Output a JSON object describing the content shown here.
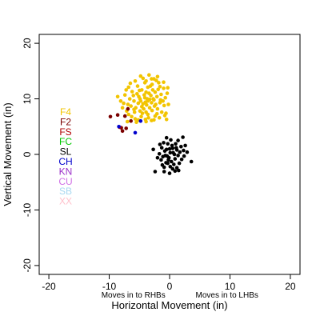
{
  "chart_data": {
    "type": "scatter",
    "title": "",
    "xlabel": "Horizontal Movement (in)",
    "ylabel": "Vertical Movement (in)",
    "xlim": [
      -21.6,
      21.6
    ],
    "ylim": [
      -21.6,
      21.6
    ],
    "x_ticks": [
      -20,
      -10,
      0,
      10,
      20
    ],
    "y_ticks": [
      -20,
      -10,
      0,
      10,
      20
    ],
    "x_tick_labels": [
      "-20",
      "-10",
      "0",
      "10",
      "20"
    ],
    "y_tick_labels": [
      "-20",
      "-10",
      "0",
      "10",
      "20"
    ],
    "grid": false,
    "legend_position": "left",
    "annotations": [
      {
        "text": "Moves in to RHBs",
        "x": -6,
        "y": -25.5
      },
      {
        "text": "Moves in to LHBs",
        "x": 9.5,
        "y": -25.5
      }
    ],
    "series": [
      {
        "name": "F4",
        "color": "#f2c400",
        "points": [
          [
            -4.1,
            10.2
          ],
          [
            -3.6,
            9.6
          ],
          [
            -4.4,
            9.1
          ],
          [
            -3.1,
            10.6
          ],
          [
            -2.6,
            9.8
          ],
          [
            -3.9,
            11.2
          ],
          [
            -4.9,
            10.0
          ],
          [
            -5.2,
            9.2
          ],
          [
            -4.6,
            8.6
          ],
          [
            -3.3,
            8.4
          ],
          [
            -2.3,
            9.0
          ],
          [
            -2.1,
            10.4
          ],
          [
            -2.8,
            11.6
          ],
          [
            -3.6,
            12.1
          ],
          [
            -4.6,
            11.6
          ],
          [
            -5.4,
            10.9
          ],
          [
            -5.9,
            9.6
          ],
          [
            -5.6,
            8.4
          ],
          [
            -4.9,
            7.8
          ],
          [
            -3.9,
            7.6
          ],
          [
            -2.9,
            7.9
          ],
          [
            -2.0,
            8.2
          ],
          [
            -1.6,
            9.3
          ],
          [
            -1.4,
            10.8
          ],
          [
            -1.9,
            11.7
          ],
          [
            -2.9,
            12.6
          ],
          [
            -4.1,
            12.9
          ],
          [
            -5.3,
            12.3
          ],
          [
            -6.2,
            11.3
          ],
          [
            -6.6,
            10.0
          ],
          [
            -6.4,
            8.7
          ],
          [
            -5.8,
            7.6
          ],
          [
            -4.7,
            6.8
          ],
          [
            -3.5,
            6.6
          ],
          [
            -2.4,
            6.9
          ],
          [
            -1.3,
            7.6
          ],
          [
            -0.9,
            8.8
          ],
          [
            -0.7,
            10.2
          ],
          [
            -1.0,
            11.9
          ],
          [
            -1.8,
            12.9
          ],
          [
            -3.0,
            13.6
          ],
          [
            -4.4,
            13.7
          ],
          [
            -5.7,
            13.2
          ],
          [
            -6.8,
            12.1
          ],
          [
            -7.4,
            10.7
          ],
          [
            -7.6,
            9.2
          ],
          [
            -7.1,
            7.8
          ],
          [
            -6.3,
            6.8
          ],
          [
            -5.2,
            6.2
          ],
          [
            -3.9,
            5.9
          ],
          [
            -2.6,
            6.2
          ],
          [
            -1.7,
            6.6
          ],
          [
            -0.6,
            7.4
          ],
          [
            -0.2,
            9.0
          ],
          [
            -0.4,
            11.0
          ],
          [
            -2.2,
            13.3
          ],
          [
            -3.7,
            10.0
          ],
          [
            -4.2,
            10.7
          ],
          [
            -3.0,
            9.3
          ],
          [
            -3.4,
            11.0
          ],
          [
            -4.8,
            9.6
          ],
          [
            -2.7,
            10.0
          ],
          [
            -3.3,
            9.9
          ],
          [
            -4.0,
            9.4
          ],
          [
            -3.8,
            8.9
          ],
          [
            -2.5,
            8.7
          ],
          [
            -5.1,
            10.4
          ],
          [
            -4.3,
            8.2
          ],
          [
            -3.2,
            12.3
          ],
          [
            -2.4,
            11.2
          ],
          [
            -5.0,
            11.5
          ],
          [
            -6.0,
            10.6
          ],
          [
            -1.5,
            9.8
          ],
          [
            -3.6,
            7.2
          ],
          [
            -4.5,
            7.4
          ],
          [
            -2.1,
            7.3
          ],
          [
            -5.9,
            8.1
          ],
          [
            -1.1,
            9.6
          ],
          [
            -3.9,
            13.2
          ],
          [
            -2.6,
            13.6
          ],
          [
            -6.9,
            9.0
          ],
          [
            -8.1,
            9.6
          ],
          [
            -7.8,
            8.4
          ],
          [
            -6.8,
            7.2
          ],
          [
            -1.6,
            12.2
          ],
          [
            -0.8,
            7.0
          ],
          [
            -5.5,
            5.8
          ],
          [
            -4.0,
            6.3
          ],
          [
            -3.0,
            6.1
          ],
          [
            -7.2,
            11.6
          ],
          [
            -6.5,
            12.8
          ],
          [
            -1.0,
            13.0
          ],
          [
            -2.0,
            14.0
          ],
          [
            -4.8,
            14.1
          ],
          [
            -3.4,
            14.3
          ],
          [
            -0.3,
            12.0
          ],
          [
            -8.6,
            10.4
          ],
          [
            -7.0,
            5.9
          ],
          [
            -0.5,
            6.3
          ],
          [
            -5.7,
            6.4
          ]
        ]
      },
      {
        "name": "F2",
        "color": "#7a0000",
        "points": [
          [
            -9.8,
            6.8
          ],
          [
            -8.6,
            7.1
          ],
          [
            -7.4,
            6.9
          ],
          [
            -6.4,
            6.0
          ],
          [
            -8.0,
            4.8
          ],
          [
            -7.2,
            4.7
          ],
          [
            -7.8,
            4.2
          ],
          [
            -6.9,
            8.2
          ]
        ]
      },
      {
        "name": "FS",
        "color": "#b00000",
        "points": [
          [
            -8.3,
            4.9
          ]
        ]
      },
      {
        "name": "FC",
        "color": "#00c800",
        "points": []
      },
      {
        "name": "SL",
        "color": "#000000",
        "points": [
          [
            0.0,
            1.0
          ],
          [
            0.6,
            0.3
          ],
          [
            -0.4,
            -0.3
          ],
          [
            0.9,
            -0.8
          ],
          [
            -0.8,
            0.6
          ],
          [
            0.3,
            -1.3
          ],
          [
            1.2,
            0.8
          ],
          [
            -1.1,
            -0.4
          ],
          [
            0.4,
            1.6
          ],
          [
            -0.3,
            1.9
          ],
          [
            1.4,
            -0.2
          ],
          [
            -1.3,
            1.2
          ],
          [
            0.7,
            -1.8
          ],
          [
            -0.6,
            -1.5
          ],
          [
            1.7,
            0.4
          ],
          [
            -1.4,
            -1.0
          ],
          [
            0.1,
            -2.2
          ],
          [
            1.0,
            1.9
          ],
          [
            -1.0,
            2.1
          ],
          [
            2.0,
            -0.9
          ],
          [
            -1.7,
            0.1
          ],
          [
            0.5,
            -2.6
          ],
          [
            -0.9,
            -2.3
          ],
          [
            1.6,
            -1.6
          ],
          [
            1.9,
            1.4
          ],
          [
            -1.6,
            1.8
          ],
          [
            0.2,
            2.6
          ],
          [
            -0.2,
            -1.0
          ],
          [
            0.8,
            0.0
          ],
          [
            -0.5,
            0.9
          ],
          [
            2.3,
            0.7
          ],
          [
            -2.0,
            -0.6
          ],
          [
            1.2,
            -2.4
          ],
          [
            -1.2,
            -1.9
          ],
          [
            2.4,
            -0.3
          ],
          [
            0.1,
            0.3
          ],
          [
            -0.7,
            -0.2
          ],
          [
            1.1,
            1.2
          ],
          [
            0.5,
            1.1
          ],
          [
            -0.1,
            -0.6
          ],
          [
            0.0,
            -3.4
          ],
          [
            -0.9,
            -3.1
          ],
          [
            0.9,
            -3.0
          ],
          [
            -2.4,
            -3.1
          ],
          [
            1.5,
            -2.9
          ],
          [
            1.4,
            2.5
          ],
          [
            2.2,
            3.1
          ],
          [
            -0.5,
            3.0
          ],
          [
            3.6,
            -1.3
          ],
          [
            2.9,
            0.4
          ],
          [
            2.6,
            1.6
          ],
          [
            -2.7,
            0.9
          ],
          [
            -0.3,
            -1.6
          ]
        ]
      },
      {
        "name": "CH",
        "color": "#0000cc",
        "points": [
          [
            -8.4,
            5.0
          ],
          [
            -5.7,
            3.9
          ],
          [
            -4.8,
            6.0
          ]
        ]
      },
      {
        "name": "KN",
        "color": "#9b30c8",
        "points": []
      },
      {
        "name": "CU",
        "color": "#d070e6",
        "points": []
      },
      {
        "name": "SB",
        "color": "#a8d8f0",
        "points": []
      },
      {
        "name": "XX",
        "color": "#ffc0cb",
        "points": []
      }
    ]
  }
}
